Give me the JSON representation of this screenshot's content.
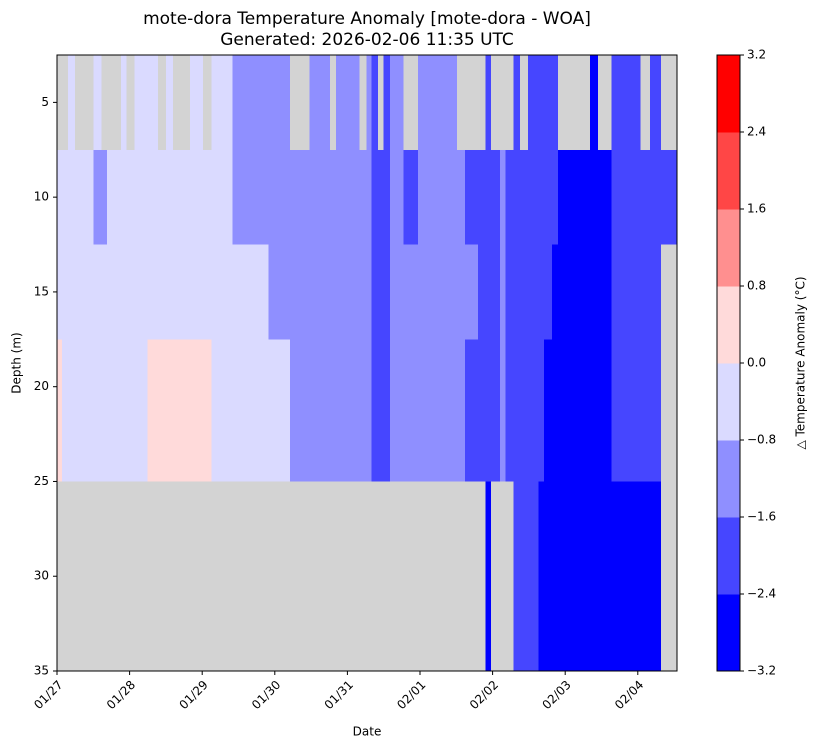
{
  "chart_data": {
    "type": "heatmap",
    "title": "mote-dora Temperature Anomaly [mote-dora - WOA]",
    "subtitle": "Generated: 2026-02-06 11:35 UTC",
    "x_label": "Date",
    "y_label": "Depth (m)",
    "xlim": [
      0,
      8.54
    ],
    "xticks": [
      {
        "value": 0,
        "label": "01/27"
      },
      {
        "value": 1,
        "label": "01/28"
      },
      {
        "value": 2,
        "label": "01/29"
      },
      {
        "value": 3,
        "label": "01/30"
      },
      {
        "value": 4,
        "label": "01/31"
      },
      {
        "value": 5,
        "label": "02/01"
      },
      {
        "value": 6,
        "label": "02/02"
      },
      {
        "value": 7,
        "label": "02/03"
      },
      {
        "value": 8,
        "label": "02/04"
      }
    ],
    "ylim": [
      2.5,
      35
    ],
    "invert_y": true,
    "yticks": [
      5,
      10,
      15,
      20,
      25,
      30,
      35
    ],
    "missing_color": "#d3d3d3",
    "rows": [
      {
        "depth": [
          2.5,
          7.5
        ],
        "x": [
          0,
          0.15,
          0.25,
          0.5,
          0.61,
          0.88,
          0.96,
          1.07,
          1.39,
          1.5,
          1.6,
          1.83,
          2.01,
          2.13,
          2.42,
          3.21,
          3.48,
          3.76,
          3.84,
          4.17,
          4.26,
          4.33,
          4.42,
          4.5,
          4.59,
          4.77,
          4.97,
          5.51,
          5.9,
          5.98,
          6.29,
          6.38,
          6.49,
          6.9,
          7.34,
          7.45,
          7.64,
          8.04,
          8.17,
          8.32,
          8.54
        ],
        "values": [
          null,
          -0.4,
          null,
          -0.4,
          null,
          -0.4,
          null,
          -0.4,
          null,
          -0.4,
          null,
          -0.4,
          null,
          -0.4,
          -1.2,
          null,
          -1.2,
          null,
          -1.2,
          null,
          -1.2,
          -2.0,
          null,
          -2.0,
          -1.2,
          null,
          -1.2,
          null,
          -2.0,
          null,
          -2.0,
          null,
          -2.0,
          null,
          -2.8,
          null,
          -2.0,
          null,
          -2.0,
          null
        ]
      },
      {
        "depth": [
          7.5,
          12.5
        ],
        "x": [
          0,
          0.5,
          0.69,
          2.42,
          4.33,
          4.59,
          4.77,
          4.97,
          5.62,
          6.1,
          6.18,
          6.9,
          7.64,
          8.54
        ],
        "values": [
          -0.4,
          -1.2,
          -0.4,
          -1.2,
          -2.0,
          -1.2,
          -2.0,
          -1.2,
          -2.0,
          -1.2,
          -2.0,
          -2.8,
          -2.0
        ]
      },
      {
        "depth": [
          12.5,
          17.5
        ],
        "x": [
          0,
          2.91,
          4.33,
          4.59,
          5.8,
          6.1,
          6.18,
          6.82,
          7.64,
          8.32,
          8.54
        ],
        "values": [
          -0.4,
          -1.2,
          -2.0,
          -1.2,
          -2.0,
          -1.2,
          -2.0,
          -2.8,
          -2.0,
          null
        ]
      },
      {
        "depth": [
          17.5,
          25
        ],
        "x": [
          0,
          0.07,
          1.25,
          2.13,
          3.21,
          4.33,
          4.59,
          5.62,
          6.1,
          6.18,
          6.71,
          7.64,
          8.32,
          8.54
        ],
        "values": [
          0.4,
          -0.4,
          0.4,
          -0.4,
          -1.2,
          -2.0,
          -1.2,
          -2.0,
          -1.2,
          -2.0,
          -2.8,
          -2.0,
          null
        ]
      },
      {
        "depth": [
          25,
          35
        ],
        "x": [
          0,
          5.9,
          5.98,
          6.29,
          6.63,
          8.32,
          8.54
        ],
        "values": [
          null,
          -2.8,
          null,
          -2.0,
          -2.8,
          null
        ]
      }
    ],
    "colorbar": {
      "label": "△ Temperature Anomaly (°C)",
      "levels": [
        -3.2,
        -2.4,
        -1.6,
        -0.8,
        0,
        0.8,
        1.6,
        2.4,
        3.2
      ],
      "colors": [
        "#0000ff",
        "#4646ff",
        "#8f8fff",
        "#dadaff",
        "#ffdada",
        "#ff8f8f",
        "#ff4646",
        "#ff0000"
      ],
      "ticks": [
        {
          "value": -3.2,
          "label": "−3.2"
        },
        {
          "value": -2.4,
          "label": "−2.4"
        },
        {
          "value": -1.6,
          "label": "−1.6"
        },
        {
          "value": -0.8,
          "label": "−0.8"
        },
        {
          "value": 0,
          "label": "0.0"
        },
        0.8,
        1.6,
        2.4,
        3.2
      ]
    }
  }
}
